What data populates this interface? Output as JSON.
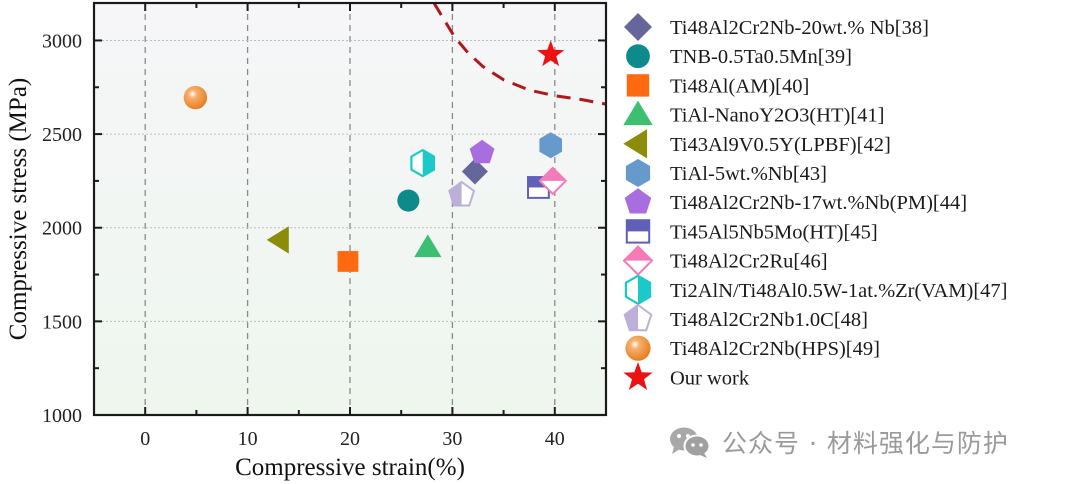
{
  "chart_data": {
    "type": "scatter",
    "title": "",
    "xlabel": "Compressive strain(%)",
    "ylabel": "Compressive stress (MPa)",
    "xlim": [
      -5,
      45
    ],
    "ylim": [
      1000,
      3200
    ],
    "xticks": [
      0,
      10,
      20,
      30,
      40
    ],
    "yticks": [
      1000,
      1500,
      2000,
      2500,
      3000
    ],
    "grid": true,
    "legend_position": "right",
    "series": [
      {
        "name": "Ti48Al2Cr2Nb-20wt.% Nb[38]",
        "marker": "diamond",
        "color": "#66669c",
        "x": 32.2,
        "y": 2300
      },
      {
        "name": "TNB-0.5Ta0.5Mn[39]",
        "marker": "circle",
        "color": "#0e8a8a",
        "x": 25.7,
        "y": 2145
      },
      {
        "name": "Ti48Al(AM)[40]",
        "marker": "square",
        "color": "#ff6a10",
        "x": 19.8,
        "y": 1820
      },
      {
        "name": "TiAl-NanoY2O3(HT)[41]",
        "marker": "triangle-up",
        "color": "#3dbf72",
        "x": 27.6,
        "y": 1895
      },
      {
        "name": "Ti43Al9V0.5Y(LPBF)[42]",
        "marker": "triangle-left",
        "color": "#8c8c0a",
        "x": 13.2,
        "y": 1935
      },
      {
        "name": "TiAl-5wt.%Nb[43]",
        "marker": "hexagon",
        "color": "#6699cc",
        "x": 39.6,
        "y": 2440
      },
      {
        "name": "Ti48Al2Cr2Nb-17wt.%Nb(PM)[44]",
        "marker": "pentagon",
        "color": "#a86ee0",
        "x": 32.9,
        "y": 2400
      },
      {
        "name": "Ti45Al5Nb5Mo(HT)[45]",
        "marker": "square-half-top",
        "color": "#6060b8",
        "x": 38.4,
        "y": 2215
      },
      {
        "name": "Ti48Al2Cr2Ru[46]",
        "marker": "diamond-half-top",
        "color": "#f47ab8",
        "x": 39.8,
        "y": 2250
      },
      {
        "name": "Ti2AlN/Ti48Al0.5W-1at.%Zr(VAM)[47]",
        "marker": "hexagon-half-right",
        "color": "#1cc8c8",
        "x": 27.1,
        "y": 2345
      },
      {
        "name": "Ti48Al2Cr2Nb1.0C[48]",
        "marker": "pentagon-half-left",
        "color": "#bcb0d8",
        "x": 30.9,
        "y": 2175
      },
      {
        "name": "Ti48Al2Cr2Nb(HPS)[49]",
        "marker": "sphere",
        "color": "#f08a30",
        "x": 4.9,
        "y": 2695
      },
      {
        "name": "Our work",
        "marker": "star",
        "color": "#ee1111",
        "x": 39.6,
        "y": 2925
      }
    ],
    "annotations": [
      {
        "type": "dashed-curve",
        "color": "#b01818",
        "x": [
          28.2,
          29.2,
          30.2,
          31.5,
          33.0,
          35.0,
          37.5,
          40.0,
          42.5,
          45.0
        ],
        "y": [
          3200,
          3110,
          3020,
          2935,
          2860,
          2790,
          2735,
          2705,
          2685,
          2660
        ]
      }
    ]
  },
  "watermark": {
    "icon": "wechat-icon",
    "text": "公众号 · 材料强化与防护"
  }
}
